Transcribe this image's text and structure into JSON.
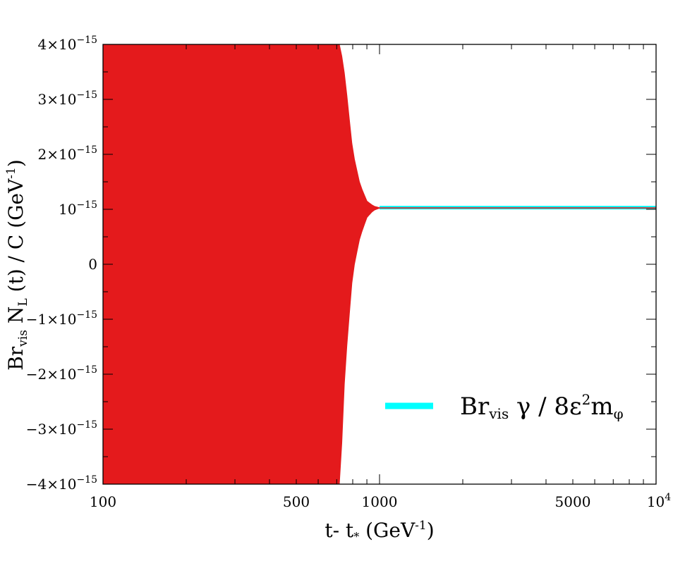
{
  "chart_data": {
    "type": "area",
    "xscale": "log",
    "xlim": [
      100,
      10000
    ],
    "ylim": [
      -4e-15,
      4e-15
    ],
    "grid": false,
    "x_ticks": [
      {
        "value": 100,
        "label": "100"
      },
      {
        "value": 500,
        "label": "500"
      },
      {
        "value": 1000,
        "label": "1000"
      },
      {
        "value": 5000,
        "label": "5000"
      }
    ],
    "x_tick_last": {
      "value": 10000,
      "base": "10",
      "exp": "4"
    },
    "y_ticks": [
      {
        "value": 4e-15,
        "mant": "4×10",
        "exp": "−15"
      },
      {
        "value": 3e-15,
        "mant": "3×10",
        "exp": "−15"
      },
      {
        "value": 2e-15,
        "mant": "2×10",
        "exp": "−15"
      },
      {
        "value": 1e-15,
        "mant": "10",
        "exp": "−15"
      },
      {
        "value": 0,
        "mant": "0",
        "exp": ""
      },
      {
        "value": -1e-15,
        "mant": "−1×10",
        "exp": "−15"
      },
      {
        "value": -2e-15,
        "mant": "−2×10",
        "exp": "−15"
      },
      {
        "value": -3e-15,
        "mant": "−3×10",
        "exp": "−15"
      },
      {
        "value": -4e-15,
        "mant": "−4×10",
        "exp": "−15"
      }
    ],
    "xlabel": {
      "a": "t- t",
      "sub": "*",
      "b": " (GeV",
      "sup": "-1",
      "c": ")"
    },
    "ylabel": {
      "a": "Br",
      "sub1": "vis",
      "b": " N",
      "sub2": "L",
      "c": " (t) / C (GeV",
      "sup": "-1",
      "d": ")"
    },
    "series": [
      {
        "kind": "oscillation-envelope",
        "color": "#e41a1c",
        "x": [
          100,
          300,
          600,
          700,
          720,
          750,
          800,
          850,
          900,
          950,
          1000,
          10000
        ],
        "upper": [
          4e-15,
          4e-15,
          4e-15,
          4e-15,
          4e-15,
          3.4e-15,
          2.05e-15,
          1.45e-15,
          1.15e-15,
          1.06e-15,
          1.03e-15,
          1.03e-15
        ],
        "lower": [
          -4e-15,
          -4e-15,
          -4e-15,
          -4e-15,
          -4e-15,
          -1.9e-15,
          -1.5e-16,
          5e-16,
          8.5e-16,
          9.8e-16,
          1.02e-15,
          1.02e-15
        ]
      },
      {
        "kind": "line",
        "name_parts": {
          "a": "Br",
          "sub": "vis",
          "b": " γ / 8ε",
          "sup": "2",
          "c": "m",
          "sub2": "φ"
        },
        "color": "#00ffff",
        "x": [
          1000,
          10000
        ],
        "y": [
          1.03e-15,
          1.03e-15
        ]
      }
    ],
    "legend_position": "lower-right"
  }
}
